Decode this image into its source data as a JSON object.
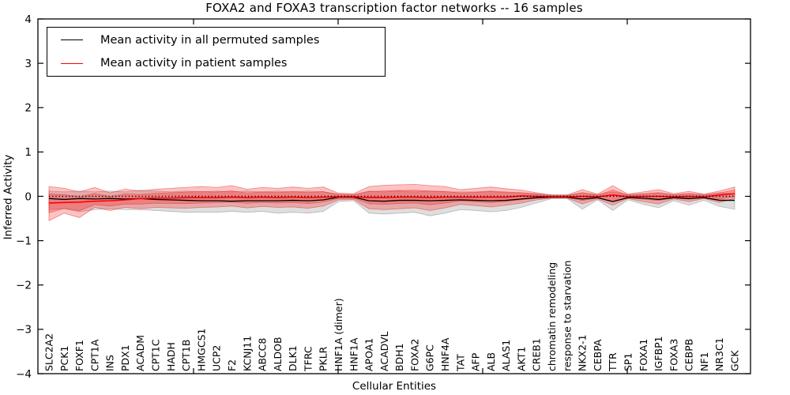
{
  "legend": {
    "entries": [
      {
        "label": "Mean activity in all permuted samples",
        "color": "#000000"
      },
      {
        "label": "Mean activity in patient samples",
        "color": "#ff0000"
      }
    ]
  },
  "chart_data": {
    "type": "line",
    "title": "FOXA2 and FOXA3 transcription factor networks -- 16 samples",
    "xlabel": "Cellular Entities",
    "ylabel": "Inferred Activity",
    "ylim": [
      -4,
      4
    ],
    "grid": false,
    "legend_position": "upper left",
    "zero_line": {
      "y": 0,
      "style": "dotted",
      "color": "#000000"
    },
    "ytick_values": [
      4,
      3,
      2,
      1,
      0,
      -1,
      -2,
      -3,
      -4
    ],
    "ytick_labels": [
      "4",
      "3",
      "2",
      "1",
      "0",
      "−1",
      "−2",
      "−3",
      "−4"
    ],
    "categories": [
      "SLC2A2",
      "PCK1",
      "FOXF1",
      "CPT1A",
      "INS",
      "PDX1",
      "ACADM",
      "CPT1C",
      "HADH",
      "CPT1B",
      "HMGCS1",
      "UCP2",
      "F2",
      "KCNJ11",
      "ABCC8",
      "ALDOB",
      "DLK1",
      "TFRC",
      "PKLR",
      "HNF1A (dimer)",
      "HNF1A",
      "APOA1",
      "ACADVL",
      "BDH1",
      "FOXA2",
      "G6PC",
      "HNF4A",
      "TAT",
      "AFP",
      "ALB",
      "ALAS1",
      "AKT1",
      "CREB1",
      "chromatin remodeling",
      "response to starvation",
      "NKX2-1",
      "CEBPA",
      "TTR",
      "SP1",
      "FOXA1",
      "IGFBP1",
      "FOXA3",
      "CEBPB",
      "NF1",
      "NR3C1",
      "GCK"
    ],
    "series": [
      {
        "name": "Mean activity in all permuted samples",
        "color": "#000000",
        "line_width": 1.3,
        "values": [
          -0.05,
          -0.07,
          -0.05,
          -0.06,
          -0.05,
          -0.06,
          -0.05,
          -0.07,
          -0.08,
          -0.09,
          -0.1,
          -0.1,
          -0.11,
          -0.1,
          -0.1,
          -0.1,
          -0.09,
          -0.1,
          -0.08,
          -0.02,
          -0.02,
          -0.1,
          -0.11,
          -0.09,
          -0.09,
          -0.1,
          -0.09,
          -0.08,
          -0.09,
          -0.1,
          -0.09,
          -0.06,
          -0.03,
          -0.02,
          -0.02,
          -0.06,
          -0.03,
          -0.12,
          -0.03,
          -0.04,
          -0.07,
          -0.03,
          -0.05,
          -0.03,
          -0.09,
          -0.09
        ],
        "band_upper": [
          0.12,
          0.1,
          0.12,
          0.1,
          0.12,
          0.1,
          0.14,
          0.12,
          0.1,
          0.12,
          0.1,
          0.12,
          0.1,
          0.12,
          0.1,
          0.12,
          0.1,
          0.12,
          0.1,
          0.05,
          0.04,
          0.12,
          0.1,
          0.12,
          0.1,
          0.12,
          0.1,
          0.1,
          0.1,
          0.12,
          0.1,
          0.08,
          0.06,
          0.03,
          0.03,
          0.08,
          0.04,
          0.1,
          0.04,
          0.06,
          0.08,
          0.04,
          0.06,
          0.04,
          0.08,
          0.06
        ],
        "band_lower": [
          -0.3,
          -0.28,
          -0.35,
          -0.3,
          -0.28,
          -0.3,
          -0.3,
          -0.32,
          -0.34,
          -0.36,
          -0.36,
          -0.36,
          -0.34,
          -0.36,
          -0.34,
          -0.38,
          -0.36,
          -0.38,
          -0.34,
          -0.12,
          -0.1,
          -0.38,
          -0.4,
          -0.38,
          -0.36,
          -0.44,
          -0.38,
          -0.3,
          -0.32,
          -0.35,
          -0.32,
          -0.25,
          -0.15,
          -0.05,
          -0.05,
          -0.29,
          -0.08,
          -0.32,
          -0.08,
          -0.18,
          -0.26,
          -0.1,
          -0.2,
          -0.09,
          -0.23,
          -0.29
        ],
        "band_color": "rgba(0,0,0,0.13)",
        "band_edge_color": "rgba(0,0,0,0.22)"
      },
      {
        "name": "Mean activity in patient samples",
        "color": "#ff0000",
        "line_width": 1.6,
        "values": [
          -0.15,
          -0.14,
          -0.13,
          -0.11,
          -0.1,
          -0.08,
          -0.05,
          -0.04,
          -0.04,
          -0.03,
          -0.03,
          -0.03,
          -0.02,
          -0.03,
          -0.02,
          -0.03,
          -0.02,
          -0.03,
          -0.02,
          -0.01,
          -0.01,
          -0.03,
          -0.03,
          -0.02,
          -0.02,
          -0.03,
          -0.02,
          -0.02,
          -0.02,
          -0.02,
          -0.02,
          0.01,
          0.0,
          -0.01,
          -0.01,
          0.0,
          -0.01,
          0.03,
          -0.01,
          0.0,
          0.0,
          -0.01,
          0.0,
          -0.01,
          0.03,
          0.06
        ],
        "band_upper": [
          0.22,
          0.18,
          0.1,
          0.2,
          0.08,
          0.16,
          0.12,
          0.16,
          0.18,
          0.2,
          0.22,
          0.2,
          0.24,
          0.16,
          0.2,
          0.18,
          0.21,
          0.18,
          0.21,
          0.07,
          0.06,
          0.22,
          0.25,
          0.26,
          0.27,
          0.24,
          0.22,
          0.15,
          0.18,
          0.21,
          0.17,
          0.14,
          0.08,
          0.03,
          0.03,
          0.15,
          0.05,
          0.24,
          0.05,
          0.1,
          0.15,
          0.06,
          0.11,
          0.05,
          0.12,
          0.21
        ],
        "band_lower": [
          -0.55,
          -0.38,
          -0.48,
          -0.25,
          -0.32,
          -0.25,
          -0.28,
          -0.25,
          -0.26,
          -0.27,
          -0.25,
          -0.24,
          -0.22,
          -0.26,
          -0.23,
          -0.25,
          -0.24,
          -0.27,
          -0.22,
          -0.08,
          -0.07,
          -0.28,
          -0.3,
          -0.28,
          -0.26,
          -0.32,
          -0.26,
          -0.18,
          -0.21,
          -0.24,
          -0.2,
          -0.15,
          -0.08,
          -0.04,
          -0.04,
          -0.17,
          -0.06,
          -0.2,
          -0.05,
          -0.12,
          -0.17,
          -0.06,
          -0.12,
          -0.05,
          -0.14,
          -0.05
        ],
        "band_color": "rgba(255,0,0,0.24)",
        "band_edge_color": "rgba(225,30,30,0.5)",
        "inner_band_ratio": 0.55
      }
    ]
  }
}
